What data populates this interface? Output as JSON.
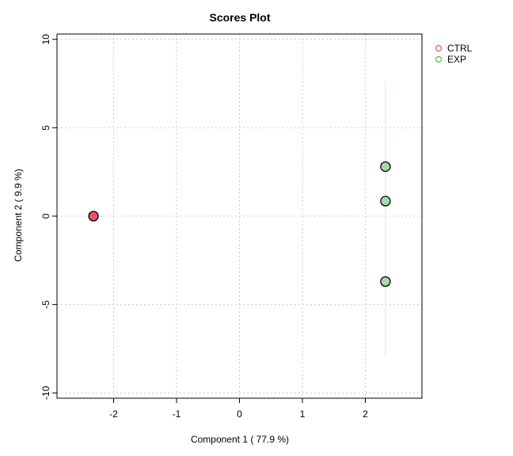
{
  "chart_data": {
    "type": "scatter",
    "title": "Scores Plot",
    "xlabel": "Component 1 ( 77.9 %)",
    "ylabel": "Component 2 ( 9.9 %)",
    "xlim": [
      -2.9,
      2.9
    ],
    "ylim": [
      -10.3,
      10.3
    ],
    "xticks": [
      -2,
      -1,
      0,
      1,
      2
    ],
    "yticks": [
      -10,
      -5,
      0,
      5,
      10
    ],
    "grid": true,
    "legend_position": "right",
    "series": [
      {
        "name": "CTRL",
        "fill": "#E8506E",
        "legend_color": "#E8506E",
        "points": [
          {
            "x": -2.32,
            "y": 0.0
          }
        ]
      },
      {
        "name": "EXP",
        "fill": "#A6D9A6",
        "legend_color": "#5BB85B",
        "points": [
          {
            "x": 2.32,
            "y": 2.8
          },
          {
            "x": 2.32,
            "y": 0.85
          },
          {
            "x": 2.32,
            "y": -3.7
          }
        ]
      }
    ]
  }
}
